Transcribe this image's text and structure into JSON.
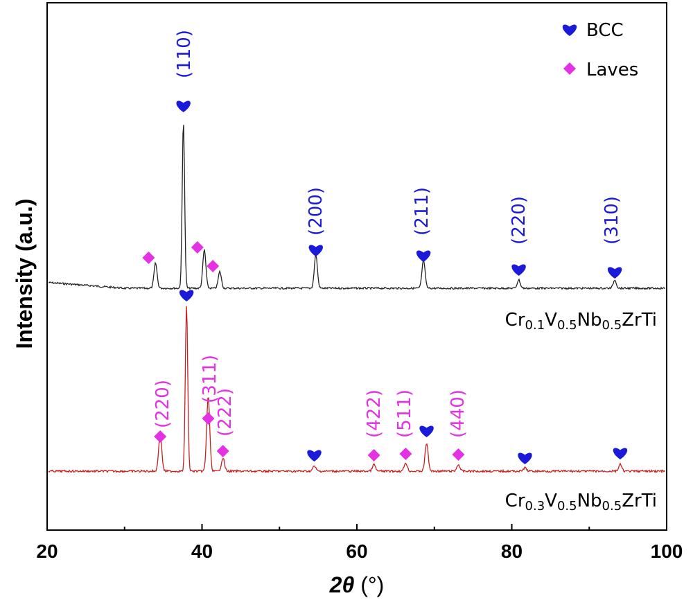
{
  "chart_data": {
    "type": "line",
    "xlabel_symbol": "2θ",
    "xlabel_unit": "(°)",
    "ylabel": "Intensity (a.u.)",
    "xlim": [
      20,
      100
    ],
    "xticks": [
      20,
      40,
      60,
      80,
      100
    ],
    "x_minor_ticks": [
      30,
      50,
      70,
      90
    ],
    "y_ticks_shown": false,
    "grid": false,
    "legend_position": "top-right",
    "legend": [
      {
        "name": "BCC",
        "marker": "heart",
        "color": "#1a1ad8"
      },
      {
        "name": "Laves",
        "marker": "diamond",
        "color": "#e431e4"
      }
    ],
    "series": [
      {
        "name": "Cr0.1V0.5Nb0.5ZrTi",
        "label_parts": [
          [
            "Cr",
            false
          ],
          [
            "0.1",
            true
          ],
          [
            "V",
            false
          ],
          [
            "0.5",
            true
          ],
          [
            "Nb",
            false
          ],
          [
            "0.5",
            true
          ],
          [
            "ZrTi",
            false
          ]
        ],
        "color": "#222222",
        "baseline_level": 0.46,
        "peaks": [
          {
            "x": 34.0,
            "height": 0.15,
            "phase": "Laves"
          },
          {
            "x": 37.6,
            "height": 1.0,
            "phase": "BCC",
            "hkl": "110"
          },
          {
            "x": 40.3,
            "height": 0.23,
            "phase": "Laves"
          },
          {
            "x": 42.3,
            "height": 0.1,
            "phase": "Laves"
          },
          {
            "x": 54.7,
            "height": 0.2,
            "phase": "BCC",
            "hkl": "200"
          },
          {
            "x": 68.6,
            "height": 0.17,
            "phase": "BCC",
            "hkl": "211"
          },
          {
            "x": 80.9,
            "height": 0.05,
            "phase": "BCC",
            "hkl": "220"
          },
          {
            "x": 93.3,
            "height": 0.05,
            "phase": "BCC",
            "hkl": "310"
          }
        ]
      },
      {
        "name": "Cr0.3V0.5Nb0.5ZrTi",
        "label_parts": [
          [
            "Cr",
            false
          ],
          [
            "0.3",
            true
          ],
          [
            "V",
            false
          ],
          [
            "0.5",
            true
          ],
          [
            "Nb",
            false
          ],
          [
            "0.5",
            true
          ],
          [
            "ZrTi",
            false
          ]
        ],
        "color": "#c42020",
        "baseline_level": 0.0,
        "peaks": [
          {
            "x": 34.6,
            "height": 0.23,
            "phase": "Laves",
            "hkl": "220"
          },
          {
            "x": 38.0,
            "height": 1.0,
            "phase": "BCC"
          },
          {
            "x": 40.8,
            "height": 0.45,
            "phase": "Laves",
            "hkl": "311"
          },
          {
            "x": 42.7,
            "height": 0.08,
            "phase": "Laves",
            "hkl": "222"
          },
          {
            "x": 54.5,
            "height": 0.03,
            "phase": "BCC"
          },
          {
            "x": 62.2,
            "height": 0.04,
            "phase": "Laves",
            "hkl": "422"
          },
          {
            "x": 66.3,
            "height": 0.05,
            "phase": "Laves",
            "hkl": "511"
          },
          {
            "x": 69.0,
            "height": 0.17,
            "phase": "BCC"
          },
          {
            "x": 73.1,
            "height": 0.04,
            "phase": "Laves",
            "hkl": "440"
          },
          {
            "x": 81.7,
            "height": 0.02,
            "phase": "BCC"
          },
          {
            "x": 94.0,
            "height": 0.04,
            "phase": "BCC"
          }
        ]
      }
    ]
  }
}
